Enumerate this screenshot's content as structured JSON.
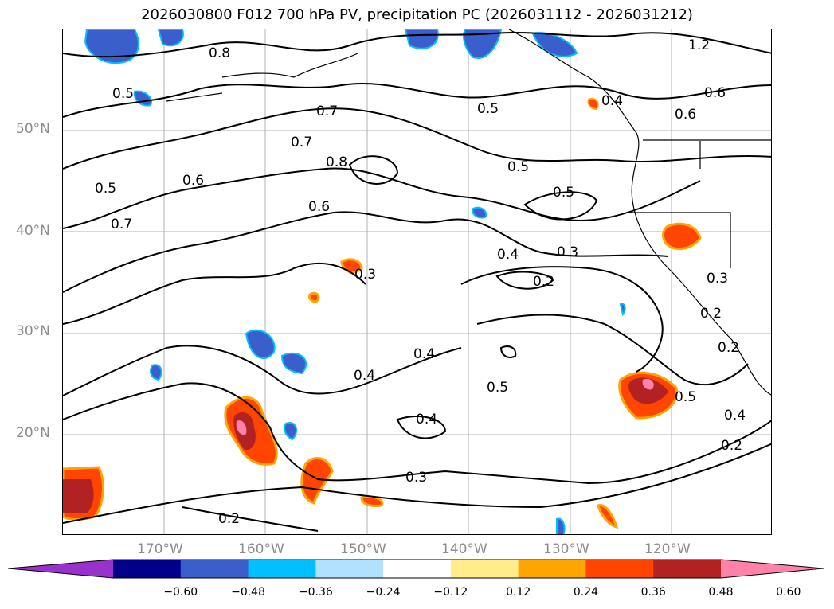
{
  "title": "2026030800 F012 700 hPa PV, precipitation PC (2026031112 - 2026031212)",
  "axes": {
    "lon_labels": [
      "170°W",
      "160°W",
      "150°W",
      "140°W",
      "130°W",
      "120°W"
    ],
    "lat_labels": [
      "50°N",
      "40°N",
      "30°N",
      "20°N"
    ]
  },
  "contour_labels": [
    "0.8",
    "0.5",
    "0.7",
    "0.5",
    "0.4",
    "0.6",
    "1.2",
    "0.7",
    "0.8",
    "0.6",
    "0.5",
    "0.5",
    "0.6",
    "0.6",
    "0.5",
    "0.7",
    "0.4",
    "0.3",
    "0.3",
    "0.2",
    "0.3",
    "0.2",
    "0.4",
    "0.4",
    "0.5",
    "0.5",
    "0.4",
    "0.2",
    "0.4",
    "0.3",
    "0.2",
    "0.2"
  ],
  "colorbar": {
    "colors": [
      "#9932cc",
      "#00008b",
      "#3a5fcd",
      "#00bfff",
      "#b0e2ff",
      "#ffffff",
      "#ffec8b",
      "#ffa500",
      "#ff4500",
      "#b22222",
      "#ff82ab"
    ],
    "ticks": [
      "−0.60",
      "−0.48",
      "−0.36",
      "−0.24",
      "−0.12",
      "0.12",
      "0.24",
      "0.36",
      "0.48",
      "0.60"
    ]
  }
}
